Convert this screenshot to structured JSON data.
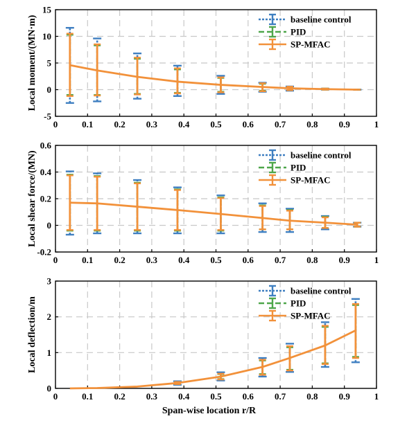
{
  "colors": {
    "baseline": "#3f7fc1",
    "pid": "#4ea64a",
    "spmfac": "#f2913a"
  },
  "chart_data": [
    {
      "type": "line",
      "ylabel": "Local moment/(MN·m)",
      "xlabel": "",
      "xlim": [
        0,
        1
      ],
      "ylim": [
        -5,
        15
      ],
      "xticks": [
        "0",
        "0.1",
        "0.2",
        "0.3",
        "0.4",
        "0.5",
        "0.6",
        "0.7",
        "0.8",
        "0.9",
        "1"
      ],
      "yticks": [
        "-5",
        "0",
        "5",
        "10",
        "15"
      ],
      "grid": true,
      "legend": [
        "baseline control",
        "PID",
        "SP-MFAC"
      ],
      "legend_position": "top-right",
      "curve": {
        "x": [
          0.045,
          0.13,
          0.255,
          0.38,
          0.515,
          0.645,
          0.73,
          0.84,
          0.94
        ],
        "y": [
          4.6,
          3.6,
          2.4,
          1.5,
          0.9,
          0.5,
          0.25,
          0.1,
          0.0
        ]
      },
      "series": [
        {
          "name": "baseline control",
          "x": [
            0.045,
            0.13,
            0.255,
            0.38,
            0.515,
            0.645,
            0.73,
            0.84,
            0.94
          ],
          "y": [
            4.6,
            3.6,
            2.4,
            1.5,
            0.9,
            0.5,
            0.25,
            0.1,
            0.0
          ],
          "lower": [
            -2.5,
            -2.2,
            -1.7,
            -1.2,
            -0.8,
            -0.4,
            -0.2,
            0.0,
            0.0
          ],
          "upper": [
            11.6,
            9.6,
            6.8,
            4.5,
            2.6,
            1.3,
            0.6,
            0.2,
            0.0
          ]
        },
        {
          "name": "PID",
          "x": [
            0.045,
            0.13,
            0.255,
            0.38,
            0.515,
            0.645,
            0.73,
            0.84,
            0.94
          ],
          "y": [
            4.6,
            3.6,
            2.4,
            1.5,
            0.9,
            0.5,
            0.25,
            0.1,
            0.0
          ],
          "lower": [
            -1.0,
            -1.0,
            -0.8,
            -0.6,
            -0.4,
            -0.2,
            -0.1,
            0.0,
            0.0
          ],
          "upper": [
            10.3,
            8.3,
            5.8,
            3.8,
            2.2,
            1.1,
            0.5,
            0.2,
            0.0
          ]
        },
        {
          "name": "SP-MFAC",
          "x": [
            0.045,
            0.13,
            0.255,
            0.38,
            0.515,
            0.645,
            0.73,
            0.84,
            0.94
          ],
          "y": [
            4.6,
            3.6,
            2.4,
            1.5,
            0.9,
            0.5,
            0.25,
            0.1,
            0.0
          ],
          "lower": [
            -1.2,
            -1.1,
            -0.9,
            -0.7,
            -0.5,
            -0.3,
            -0.1,
            0.0,
            0.0
          ],
          "upper": [
            10.5,
            8.5,
            6.0,
            4.0,
            2.3,
            1.2,
            0.55,
            0.2,
            0.0
          ]
        }
      ]
    },
    {
      "type": "line",
      "ylabel": "Local shear force/(MN)",
      "xlabel": "",
      "xlim": [
        0,
        1
      ],
      "ylim": [
        -0.2,
        0.6
      ],
      "xticks": [
        "0",
        "0.1",
        "0.2",
        "0.3",
        "0.4",
        "0.5",
        "0.6",
        "0.7",
        "0.8",
        "0.9",
        "1"
      ],
      "yticks": [
        "-0.2",
        "0",
        "0.2",
        "0.4",
        "0.6"
      ],
      "grid": true,
      "legend": [
        "baseline control",
        "PID",
        "SP-MFAC"
      ],
      "legend_position": "top-right",
      "curve": {
        "x": [
          0.045,
          0.13,
          0.255,
          0.38,
          0.515,
          0.645,
          0.73,
          0.84,
          0.94
        ],
        "y": [
          0.17,
          0.165,
          0.14,
          0.115,
          0.085,
          0.055,
          0.035,
          0.02,
          0.005
        ]
      },
      "series": [
        {
          "name": "baseline control",
          "x": [
            0.045,
            0.13,
            0.255,
            0.38,
            0.515,
            0.645,
            0.73,
            0.84,
            0.94
          ],
          "y": [
            0.17,
            0.165,
            0.14,
            0.115,
            0.085,
            0.055,
            0.035,
            0.02,
            0.005
          ],
          "lower": [
            -0.07,
            -0.06,
            -0.06,
            -0.06,
            -0.06,
            -0.05,
            -0.05,
            -0.03,
            -0.01
          ],
          "upper": [
            0.405,
            0.39,
            0.34,
            0.285,
            0.225,
            0.165,
            0.125,
            0.07,
            0.02
          ]
        },
        {
          "name": "PID",
          "x": [
            0.045,
            0.13,
            0.255,
            0.38,
            0.515,
            0.645,
            0.73,
            0.84,
            0.94
          ],
          "y": [
            0.17,
            0.165,
            0.14,
            0.115,
            0.085,
            0.055,
            0.035,
            0.02,
            0.005
          ],
          "lower": [
            -0.04,
            -0.04,
            -0.04,
            -0.04,
            -0.04,
            -0.03,
            -0.03,
            -0.02,
            -0.01
          ],
          "upper": [
            0.38,
            0.37,
            0.32,
            0.27,
            0.21,
            0.15,
            0.115,
            0.065,
            0.02
          ]
        },
        {
          "name": "SP-MFAC",
          "x": [
            0.045,
            0.13,
            0.255,
            0.38,
            0.515,
            0.645,
            0.73,
            0.84,
            0.94
          ],
          "y": [
            0.17,
            0.165,
            0.14,
            0.115,
            0.085,
            0.055,
            0.035,
            0.02,
            0.005
          ],
          "lower": [
            -0.035,
            -0.035,
            -0.035,
            -0.035,
            -0.035,
            -0.03,
            -0.03,
            -0.02,
            -0.01
          ],
          "upper": [
            0.375,
            0.365,
            0.315,
            0.265,
            0.205,
            0.145,
            0.11,
            0.06,
            0.02
          ]
        }
      ]
    },
    {
      "type": "line",
      "ylabel": "Local deflection/m",
      "xlabel": "Span-wise location r/R",
      "xlim": [
        0,
        1
      ],
      "ylim": [
        0,
        3
      ],
      "xticks": [
        "0",
        "0.1",
        "0.2",
        "0.3",
        "0.4",
        "0.5",
        "0.6",
        "0.7",
        "0.8",
        "0.9",
        "1"
      ],
      "yticks": [
        "0",
        "1",
        "2",
        "3"
      ],
      "grid": true,
      "legend": [
        "baseline control",
        "PID",
        "SP-MFAC"
      ],
      "legend_position": "top-right",
      "curve": {
        "x": [
          0.045,
          0.13,
          0.255,
          0.38,
          0.515,
          0.645,
          0.73,
          0.84,
          0.935
        ],
        "y": [
          0.0,
          0.01,
          0.05,
          0.15,
          0.33,
          0.6,
          0.85,
          1.2,
          1.62
        ]
      },
      "series": [
        {
          "name": "baseline control",
          "x": [
            0.38,
            0.515,
            0.645,
            0.73,
            0.84,
            0.935
          ],
          "y": [
            0.15,
            0.33,
            0.6,
            0.85,
            1.2,
            1.62
          ],
          "lower": [
            0.1,
            0.22,
            0.33,
            0.46,
            0.6,
            0.73
          ],
          "upper": [
            0.2,
            0.45,
            0.85,
            1.25,
            1.85,
            2.5
          ]
        },
        {
          "name": "PID",
          "x": [
            0.38,
            0.515,
            0.645,
            0.73,
            0.84,
            0.935
          ],
          "y": [
            0.15,
            0.33,
            0.6,
            0.85,
            1.2,
            1.62
          ],
          "lower": [
            0.12,
            0.26,
            0.4,
            0.52,
            0.7,
            0.88
          ],
          "upper": [
            0.18,
            0.4,
            0.78,
            1.15,
            1.72,
            2.33
          ]
        },
        {
          "name": "SP-MFAC",
          "x": [
            0.38,
            0.515,
            0.645,
            0.73,
            0.84,
            0.935
          ],
          "y": [
            0.15,
            0.33,
            0.6,
            0.85,
            1.2,
            1.62
          ],
          "lower": [
            0.12,
            0.25,
            0.38,
            0.5,
            0.68,
            0.85
          ],
          "upper": [
            0.18,
            0.41,
            0.8,
            1.18,
            1.75,
            2.36
          ]
        }
      ]
    }
  ]
}
